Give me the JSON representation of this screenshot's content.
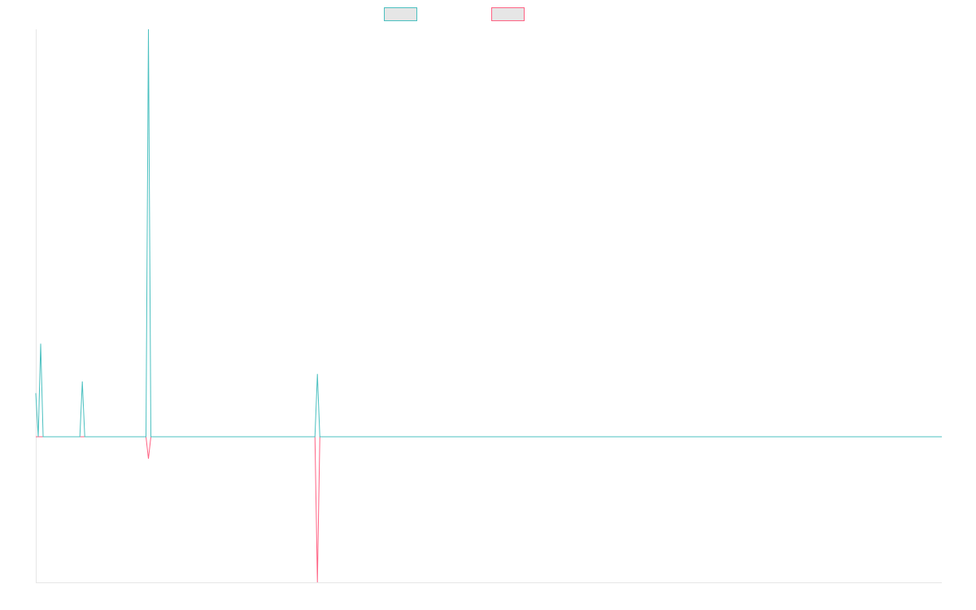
{
  "colors": {
    "teal": "#4bc0c0",
    "pink": "#ff6384",
    "legend_fill": "#e6e6e6",
    "axis": "#e6e6e6",
    "background": "#ffffff"
  },
  "chart_data": {
    "type": "line",
    "title": "",
    "xlabel": "",
    "ylabel": "",
    "grid": false,
    "legend": {
      "position": "top-center",
      "labels_visible": false
    },
    "x": [
      0,
      1,
      2,
      3,
      4,
      5,
      6,
      7,
      8,
      9,
      10,
      11,
      12,
      13,
      14,
      15,
      16,
      17,
      18,
      19,
      20,
      21,
      22,
      23,
      24,
      25,
      26,
      27,
      28,
      29,
      30,
      31,
      32,
      33,
      34,
      35,
      36,
      37,
      38,
      39,
      40,
      41,
      42,
      43,
      44,
      45,
      46,
      47,
      48,
      49,
      50,
      51,
      52,
      53,
      54,
      55,
      56,
      57,
      58,
      59,
      60,
      61,
      62,
      63,
      64,
      65,
      66,
      67,
      68,
      69,
      70,
      71,
      72,
      73,
      74,
      75,
      76,
      77,
      78,
      79,
      80,
      81,
      82,
      83,
      84,
      85,
      86,
      87,
      88,
      89,
      90,
      91,
      92,
      93,
      94,
      95,
      96,
      97,
      98,
      99,
      100,
      101,
      102,
      103,
      104,
      105,
      106,
      107,
      108,
      109,
      110,
      111,
      112,
      113,
      114,
      115,
      116,
      117,
      118,
      119,
      120,
      121,
      122,
      123,
      124,
      125,
      126,
      127,
      128,
      129,
      130,
      131,
      132,
      133,
      134,
      135,
      136,
      137,
      138,
      139,
      140,
      141,
      142,
      143,
      144,
      145,
      146,
      147,
      148,
      149,
      150,
      151,
      152,
      153,
      154,
      155,
      156,
      157,
      158,
      159,
      160,
      161,
      162,
      163,
      164,
      165,
      166,
      167,
      168,
      169,
      170,
      171,
      172,
      173,
      174,
      175,
      176,
      177,
      178,
      179,
      180,
      181,
      182,
      183,
      184,
      185,
      186,
      187,
      188,
      189,
      190,
      191,
      192,
      193,
      194,
      195,
      196,
      197,
      198,
      199,
      200,
      201,
      202,
      203,
      204,
      205,
      206,
      207,
      208,
      209,
      210,
      211,
      212,
      213,
      214,
      215,
      216,
      217,
      218,
      219,
      220,
      221,
      222,
      223,
      224,
      225,
      226,
      227,
      228,
      229,
      230,
      231,
      232,
      233,
      234,
      235,
      236,
      237,
      238,
      239,
      240,
      241,
      242,
      243,
      244,
      245,
      246,
      247,
      248,
      249,
      250,
      251,
      252,
      253,
      254,
      255,
      256,
      257,
      258,
      259,
      260,
      261,
      262,
      263,
      264,
      265,
      266,
      267,
      268,
      269,
      270,
      271,
      272,
      273,
      274,
      275,
      276,
      277,
      278,
      279,
      280,
      281,
      282,
      283,
      284,
      285,
      286,
      287,
      288,
      289,
      290,
      291,
      292,
      293,
      294,
      295,
      296,
      297,
      298,
      299,
      300,
      301,
      302,
      303,
      304,
      305,
      306,
      307,
      308,
      309,
      310,
      311,
      312,
      313,
      314,
      315,
      316,
      317,
      318,
      319,
      320,
      321,
      322,
      323,
      324,
      325,
      326,
      327,
      328,
      329,
      330,
      331,
      332,
      333,
      334,
      335,
      336,
      337,
      338,
      339,
      340,
      341,
      342,
      343,
      344,
      345,
      346,
      347,
      348,
      349,
      350,
      351,
      352,
      353,
      354,
      355,
      356,
      357,
      358,
      359,
      360,
      361,
      362,
      363,
      364,
      365,
      366,
      367,
      368,
      369,
      370
    ],
    "xlim": [
      0,
      370
    ],
    "ylim": [
      -50,
      140
    ],
    "series": [
      {
        "color_key": "teal",
        "points": [
          [
            0,
            15
          ],
          [
            1,
            0
          ],
          [
            2,
            32
          ],
          [
            3,
            0
          ],
          [
            18,
            0
          ],
          [
            19,
            19
          ],
          [
            20,
            0
          ],
          [
            45,
            0
          ],
          [
            46,
            140
          ],
          [
            47,
            0
          ],
          [
            114,
            0
          ],
          [
            115,
            21.6
          ],
          [
            116,
            0
          ],
          [
            370,
            0
          ]
        ]
      },
      {
        "color_key": "pink",
        "points": [
          [
            0,
            0
          ],
          [
            45,
            0
          ],
          [
            46,
            -7.5
          ],
          [
            47,
            0
          ],
          [
            114,
            0
          ],
          [
            115,
            -50
          ],
          [
            116,
            0
          ],
          [
            370,
            0
          ]
        ]
      }
    ]
  }
}
